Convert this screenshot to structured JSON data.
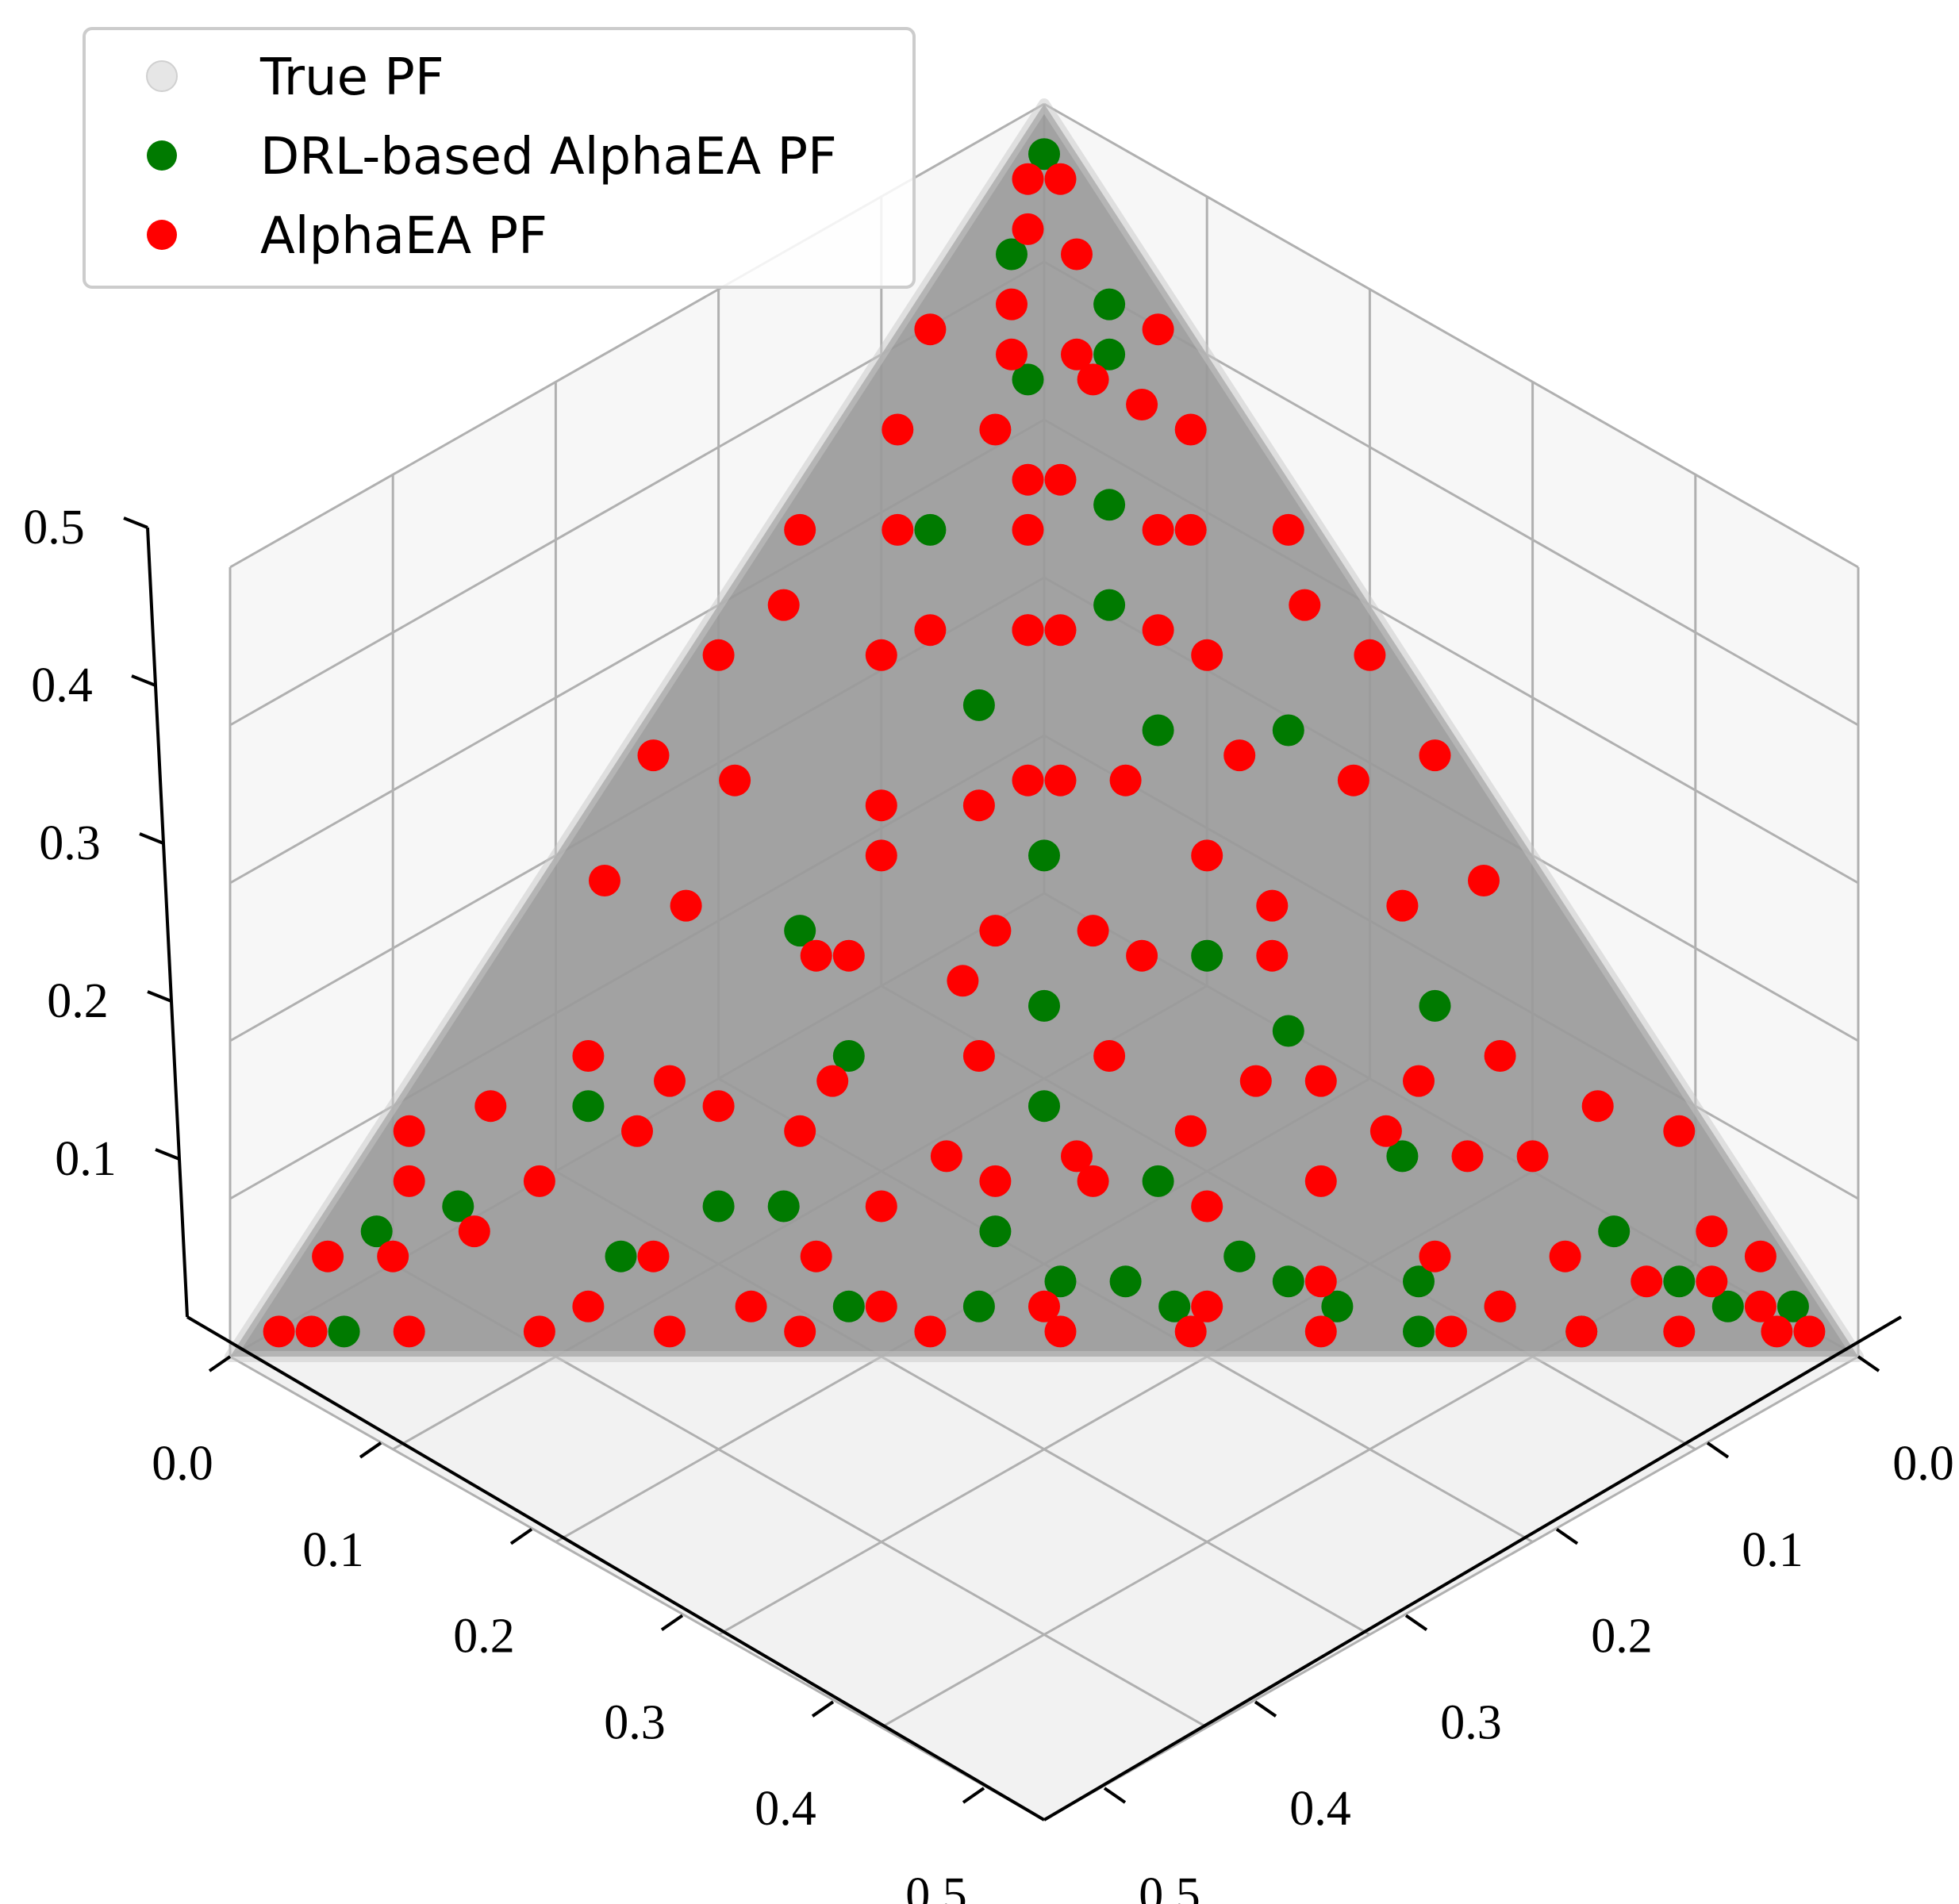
{
  "chart_data": {
    "type": "scatter",
    "projection": "3d",
    "view": "top-down oblique (elevation ~45°, azimuth ~45°)",
    "title": "",
    "xlabel": "",
    "ylabel": "",
    "zlabel": "",
    "xlim": [
      0.0,
      0.5
    ],
    "ylim": [
      0.0,
      0.5
    ],
    "zlim": [
      0.0,
      0.5
    ],
    "grid": true,
    "x_ticks": [
      "0.0",
      "0.1",
      "0.2",
      "0.3",
      "0.4",
      "0.5"
    ],
    "y_ticks": [
      "0.0",
      "0.1",
      "0.2",
      "0.3",
      "0.4",
      "0.5"
    ],
    "z_ticks": [
      "0.1",
      "0.2",
      "0.3",
      "0.4",
      "0.5"
    ],
    "legend": {
      "position": "top-left",
      "entries": [
        {
          "label": "True PF",
          "color": "#e6e6e6"
        },
        {
          "label": "DRL-based AlphaEA PF",
          "color": "#007a00"
        },
        {
          "label": "AlphaEA PF",
          "color": "#ff0000"
        }
      ]
    },
    "series": [
      {
        "name": "True PF",
        "color": "#999999",
        "description": "Triangular simplex f1+f2+f3=0.5"
      },
      {
        "name": "DRL-based AlphaEA PF",
        "color": "#007a00",
        "points": [
          [
            0.01,
            0.01,
            0.48
          ],
          [
            0.02,
            0.04,
            0.44
          ],
          [
            0.06,
            0.02,
            0.42
          ],
          [
            0.05,
            0.06,
            0.39
          ],
          [
            0.07,
            0.03,
            0.4
          ],
          [
            0.1,
            0.06,
            0.34
          ],
          [
            0.12,
            0.08,
            0.3
          ],
          [
            0.05,
            0.12,
            0.33
          ],
          [
            0.16,
            0.09,
            0.25
          ],
          [
            0.1,
            0.14,
            0.26
          ],
          [
            0.2,
            0.05,
            0.25
          ],
          [
            0.15,
            0.15,
            0.2
          ],
          [
            0.22,
            0.12,
            0.16
          ],
          [
            0.18,
            0.18,
            0.14
          ],
          [
            0.09,
            0.24,
            0.17
          ],
          [
            0.26,
            0.11,
            0.13
          ],
          [
            0.13,
            0.25,
            0.12
          ],
          [
            0.3,
            0.06,
            0.14
          ],
          [
            0.2,
            0.2,
            0.1
          ],
          [
            0.25,
            0.18,
            0.07
          ],
          [
            0.32,
            0.1,
            0.08
          ],
          [
            0.14,
            0.3,
            0.06
          ],
          [
            0.35,
            0.12,
            0.03
          ],
          [
            0.28,
            0.2,
            0.02
          ],
          [
            0.22,
            0.26,
            0.02
          ],
          [
            0.4,
            0.05,
            0.05
          ],
          [
            0.43,
            0.04,
            0.03
          ],
          [
            0.45,
            0.03,
            0.02
          ],
          [
            0.06,
            0.34,
            0.1
          ],
          [
            0.1,
            0.36,
            0.04
          ],
          [
            0.04,
            0.4,
            0.06
          ],
          [
            0.02,
            0.43,
            0.05
          ],
          [
            0.03,
            0.46,
            0.01
          ],
          [
            0.47,
            0.01,
            0.02
          ],
          [
            0.12,
            0.32,
            0.06
          ],
          [
            0.33,
            0.15,
            0.02
          ],
          [
            0.38,
            0.1,
            0.02
          ],
          [
            0.41,
            0.08,
            0.01
          ],
          [
            0.18,
            0.3,
            0.02
          ],
          [
            0.36,
            0.13,
            0.01
          ],
          [
            0.21,
            0.24,
            0.05
          ],
          [
            0.24,
            0.23,
            0.03
          ],
          [
            0.29,
            0.17,
            0.04
          ],
          [
            0.31,
            0.16,
            0.03
          ],
          [
            0.26,
            0.21,
            0.03
          ]
        ]
      },
      {
        "name": "AlphaEA PF",
        "color": "#ff0000",
        "points": [
          [
            0.02,
            0.03,
            0.45
          ],
          [
            0.04,
            0.02,
            0.44
          ],
          [
            0.03,
            0.05,
            0.42
          ],
          [
            0.07,
            0.04,
            0.39
          ],
          [
            0.05,
            0.08,
            0.37
          ],
          [
            0.09,
            0.03,
            0.38
          ],
          [
            0.08,
            0.09,
            0.33
          ],
          [
            0.12,
            0.05,
            0.33
          ],
          [
            0.1,
            0.11,
            0.29
          ],
          [
            0.14,
            0.07,
            0.29
          ],
          [
            0.07,
            0.14,
            0.29
          ],
          [
            0.16,
            0.11,
            0.23
          ],
          [
            0.12,
            0.16,
            0.22
          ],
          [
            0.19,
            0.07,
            0.24
          ],
          [
            0.09,
            0.19,
            0.22
          ],
          [
            0.2,
            0.14,
            0.16
          ],
          [
            0.15,
            0.2,
            0.15
          ],
          [
            0.23,
            0.09,
            0.18
          ],
          [
            0.11,
            0.23,
            0.16
          ],
          [
            0.25,
            0.16,
            0.09
          ],
          [
            0.18,
            0.24,
            0.08
          ],
          [
            0.28,
            0.11,
            0.11
          ],
          [
            0.13,
            0.28,
            0.09
          ],
          [
            0.3,
            0.13,
            0.07
          ],
          [
            0.16,
            0.3,
            0.04
          ],
          [
            0.34,
            0.08,
            0.08
          ],
          [
            0.08,
            0.33,
            0.09
          ],
          [
            0.36,
            0.06,
            0.08
          ],
          [
            0.06,
            0.37,
            0.07
          ],
          [
            0.39,
            0.07,
            0.04
          ],
          [
            0.05,
            0.4,
            0.05
          ],
          [
            0.42,
            0.05,
            0.03
          ],
          [
            0.03,
            0.43,
            0.04
          ],
          [
            0.44,
            0.03,
            0.03
          ],
          [
            0.01,
            0.45,
            0.04
          ],
          [
            0.46,
            0.02,
            0.02
          ],
          [
            0.02,
            0.47,
            0.01
          ],
          [
            0.48,
            0.01,
            0.01
          ],
          [
            0.01,
            0.48,
            0.01
          ],
          [
            0.22,
            0.2,
            0.08
          ],
          [
            0.27,
            0.17,
            0.06
          ],
          [
            0.17,
            0.27,
            0.06
          ],
          [
            0.32,
            0.15,
            0.03
          ],
          [
            0.15,
            0.33,
            0.02
          ],
          [
            0.24,
            0.24,
            0.02
          ],
          [
            0.29,
            0.19,
            0.02
          ],
          [
            0.19,
            0.29,
            0.02
          ],
          [
            0.35,
            0.11,
            0.04
          ],
          [
            0.11,
            0.35,
            0.04
          ],
          [
            0.38,
            0.1,
            0.02
          ],
          [
            0.1,
            0.38,
            0.02
          ],
          [
            0.21,
            0.17,
            0.12
          ],
          [
            0.17,
            0.21,
            0.12
          ],
          [
            0.26,
            0.13,
            0.11
          ],
          [
            0.13,
            0.26,
            0.11
          ],
          [
            0.31,
            0.08,
            0.11
          ],
          [
            0.08,
            0.31,
            0.11
          ],
          [
            0.18,
            0.15,
            0.17
          ],
          [
            0.15,
            0.18,
            0.17
          ],
          [
            0.24,
            0.1,
            0.16
          ],
          [
            0.1,
            0.24,
            0.16
          ],
          [
            0.27,
            0.05,
            0.18
          ],
          [
            0.05,
            0.27,
            0.18
          ],
          [
            0.14,
            0.13,
            0.23
          ],
          [
            0.13,
            0.14,
            0.23
          ],
          [
            0.2,
            0.1,
            0.2
          ],
          [
            0.1,
            0.2,
            0.2
          ],
          [
            0.23,
            0.04,
            0.23
          ],
          [
            0.04,
            0.23,
            0.23
          ],
          [
            0.16,
            0.06,
            0.28
          ],
          [
            0.06,
            0.16,
            0.28
          ],
          [
            0.11,
            0.1,
            0.29
          ],
          [
            0.1,
            0.11,
            0.29
          ],
          [
            0.18,
            0.02,
            0.3
          ],
          [
            0.02,
            0.18,
            0.3
          ],
          [
            0.13,
            0.04,
            0.33
          ],
          [
            0.04,
            0.13,
            0.33
          ],
          [
            0.08,
            0.07,
            0.35
          ],
          [
            0.07,
            0.08,
            0.35
          ],
          [
            0.11,
            0.02,
            0.37
          ],
          [
            0.02,
            0.11,
            0.37
          ],
          [
            0.06,
            0.04,
            0.4
          ],
          [
            0.04,
            0.06,
            0.4
          ],
          [
            0.01,
            0.02,
            0.47
          ],
          [
            0.02,
            0.01,
            0.47
          ],
          [
            0.33,
            0.05,
            0.12
          ],
          [
            0.05,
            0.33,
            0.12
          ],
          [
            0.37,
            0.03,
            0.1
          ],
          [
            0.03,
            0.37,
            0.1
          ],
          [
            0.4,
            0.01,
            0.09
          ],
          [
            0.01,
            0.4,
            0.09
          ],
          [
            0.43,
            0.02,
            0.05
          ],
          [
            0.02,
            0.41,
            0.07
          ],
          [
            0.45,
            0.01,
            0.04
          ],
          [
            0.29,
            0.02,
            0.19
          ],
          [
            0.02,
            0.29,
            0.19
          ],
          [
            0.25,
            0.01,
            0.24
          ],
          [
            0.01,
            0.25,
            0.24
          ],
          [
            0.21,
            0.01,
            0.28
          ],
          [
            0.01,
            0.21,
            0.28
          ],
          [
            0.16,
            0.01,
            0.33
          ],
          [
            0.01,
            0.16,
            0.33
          ],
          [
            0.08,
            0.01,
            0.41
          ],
          [
            0.01,
            0.08,
            0.41
          ],
          [
            0.47,
            0.02,
            0.01
          ],
          [
            0.44,
            0.05,
            0.01
          ],
          [
            0.41,
            0.08,
            0.01
          ],
          [
            0.37,
            0.12,
            0.01
          ],
          [
            0.33,
            0.16,
            0.01
          ],
          [
            0.29,
            0.2,
            0.01
          ],
          [
            0.25,
            0.24,
            0.01
          ],
          [
            0.21,
            0.28,
            0.01
          ],
          [
            0.17,
            0.32,
            0.01
          ],
          [
            0.13,
            0.36,
            0.01
          ],
          [
            0.09,
            0.4,
            0.01
          ],
          [
            0.05,
            0.44,
            0.01
          ],
          [
            0.31,
            0.1,
            0.09
          ],
          [
            0.1,
            0.3,
            0.1
          ],
          [
            0.2,
            0.23,
            0.07
          ],
          [
            0.23,
            0.2,
            0.07
          ]
        ]
      }
    ]
  }
}
